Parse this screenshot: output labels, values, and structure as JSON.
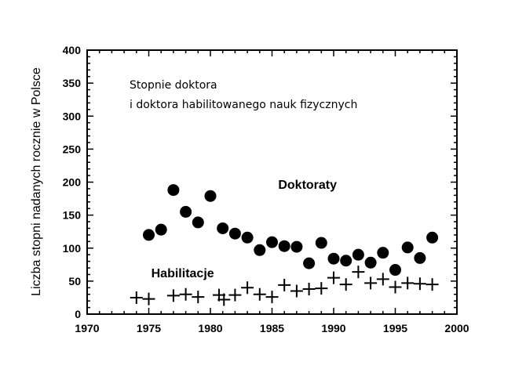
{
  "chart_data": {
    "type": "scatter",
    "title": "",
    "annotation": {
      "line1": "Stopnie doktora",
      "line2": "i doktora habilitowanego nauk fizycznych"
    },
    "xlabel": "",
    "ylabel": "Liczba stopni nadanych rocznie w Polsce",
    "xlim": [
      1970,
      2000
    ],
    "ylim": [
      0,
      400
    ],
    "xticks": [
      1970,
      1975,
      1980,
      1985,
      1990,
      1995,
      2000
    ],
    "yticks": [
      0,
      50,
      100,
      150,
      200,
      250,
      300,
      350,
      400
    ],
    "xtick_labels": [
      "1970",
      "1975",
      "1980",
      "1985",
      "1990",
      "1995",
      "2000"
    ],
    "ytick_labels": [
      "0",
      "50",
      "100",
      "150",
      "200",
      "250",
      "300",
      "350",
      "400"
    ],
    "grid": false,
    "series": [
      {
        "name": "Doktoraty",
        "marker": "circle",
        "color": "#000000",
        "label_at": [
          1985.5,
          190
        ],
        "x": [
          1975,
          1976,
          1977,
          1978,
          1979,
          1980,
          1981,
          1982,
          1983,
          1984,
          1985,
          1986,
          1987,
          1988,
          1989,
          1990,
          1991,
          1992,
          1993,
          1994,
          1995,
          1996,
          1997,
          1998
        ],
        "y": [
          120,
          128,
          188,
          155,
          139,
          179,
          130,
          122,
          116,
          97,
          109,
          103,
          102,
          77,
          108,
          84,
          81,
          90,
          78,
          93,
          67,
          101,
          85,
          116
        ]
      },
      {
        "name": "Habilitacje",
        "marker": "plus",
        "color": "#000000",
        "label_at": [
          1975.2,
          56
        ],
        "x": [
          1974,
          1975,
          1977,
          1978,
          1979,
          1980.7,
          1981.1,
          1982,
          1983,
          1984,
          1985,
          1986,
          1987,
          1988,
          1989,
          1990,
          1991,
          1992,
          1993,
          1994,
          1995,
          1996,
          1997,
          1998
        ],
        "y": [
          25,
          23,
          28,
          30,
          26,
          29,
          22,
          29,
          40,
          30,
          26,
          44,
          35,
          38,
          39,
          55,
          45,
          64,
          47,
          53,
          41,
          47,
          46,
          45
        ]
      }
    ]
  }
}
